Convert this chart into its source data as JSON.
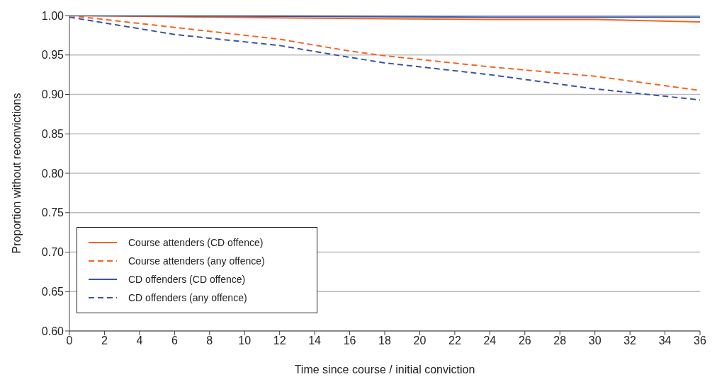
{
  "chart_data": {
    "type": "line",
    "xlabel": "Time since course / initial conviction",
    "ylabel": "Proportion without reconvictions",
    "xlim": [
      0,
      36
    ],
    "xticks": [
      0,
      2,
      4,
      6,
      8,
      10,
      12,
      14,
      16,
      18,
      20,
      22,
      24,
      26,
      28,
      30,
      32,
      34,
      36
    ],
    "ylim": [
      0.6,
      1.0
    ],
    "yticks": [
      {
        "value": 0.6,
        "label": "0.60"
      },
      {
        "value": 0.65,
        "label": "0.65"
      },
      {
        "value": 0.7,
        "label": "0.70"
      },
      {
        "value": 0.75,
        "label": "0.75"
      },
      {
        "value": 0.8,
        "label": "0.80"
      },
      {
        "value": 0.85,
        "label": "0.85"
      },
      {
        "value": 0.9,
        "label": "0.90"
      },
      {
        "value": 0.95,
        "label": "0.95"
      },
      {
        "value": 1.0,
        "label": "1.00"
      }
    ],
    "grid": "y",
    "legend": "bottom left",
    "marker": "none",
    "series": [
      {
        "name": "Course attenders (CD offence)",
        "color": "#f26522",
        "line_style": "solid",
        "x": [
          0,
          12,
          24,
          30,
          36
        ],
        "values": [
          1.0,
          0.997,
          0.995,
          0.995,
          0.992
        ]
      },
      {
        "name": "Course attenders (any offence)",
        "color": "#f26522",
        "line_style": "dashed",
        "x": [
          0,
          6,
          12,
          16,
          18,
          24,
          30,
          36
        ],
        "values": [
          1.0,
          0.985,
          0.97,
          0.955,
          0.949,
          0.935,
          0.923,
          0.905
        ]
      },
      {
        "name": "CD offenders (CD offence)",
        "color": "#3953a4",
        "line_style": "solid",
        "x": [
          0,
          12,
          24,
          36
        ],
        "values": [
          1.0,
          0.999,
          0.998,
          0.998
        ]
      },
      {
        "name": "CD offenders (any offence)",
        "color": "#3953a4",
        "line_style": "dashed",
        "x": [
          0,
          6,
          12,
          16,
          18,
          24,
          30,
          36
        ],
        "values": [
          0.998,
          0.976,
          0.962,
          0.947,
          0.94,
          0.925,
          0.907,
          0.893
        ]
      }
    ]
  }
}
